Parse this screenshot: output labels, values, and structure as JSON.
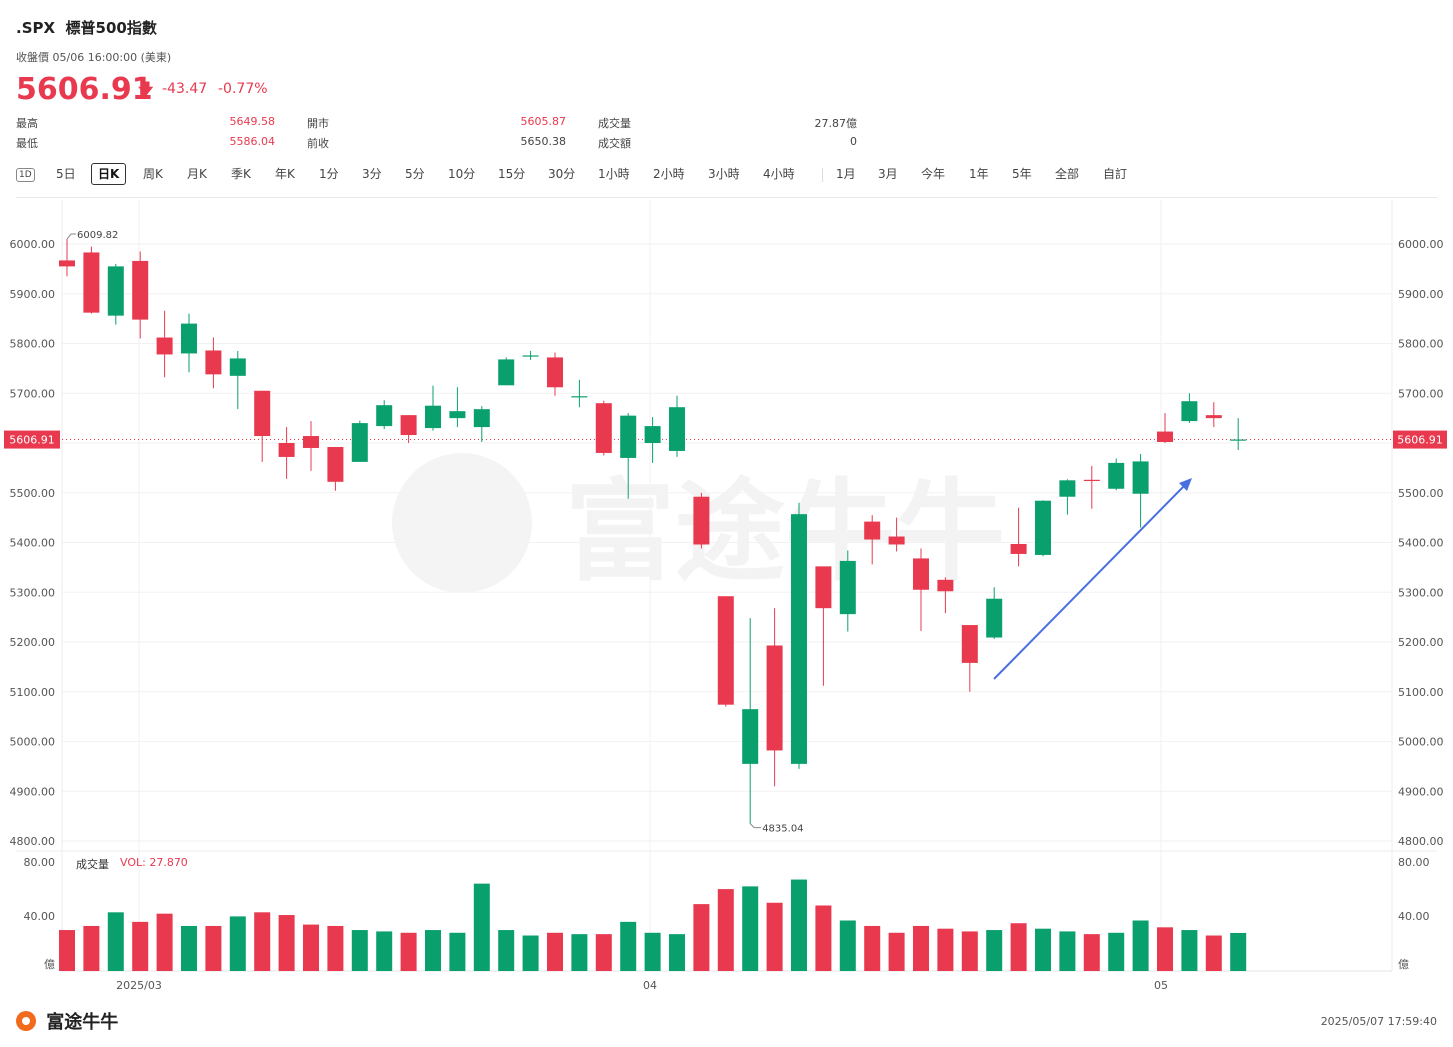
{
  "header": {
    "symbol": ".SPX",
    "name": "標普500指數",
    "subtitle": "收盤價 05/06 16:00:00 (美東)",
    "price": "5606.91",
    "change": "-43.47",
    "change_pct": "-0.77%"
  },
  "stats": [
    {
      "label": "最高",
      "value": "5649.58"
    },
    {
      "label": "最低",
      "value": "5586.04"
    },
    {
      "label": "開市",
      "value": "5605.87"
    },
    {
      "label": "前收",
      "value": "5650.38"
    },
    {
      "label": "成交量",
      "value": "27.87億"
    },
    {
      "label": "成交額",
      "value": "0"
    }
  ],
  "tabs": [
    "1D",
    "5日",
    "日K",
    "周K",
    "月K",
    "季K",
    "年K",
    "1分",
    "3分",
    "5分",
    "10分",
    "15分",
    "30分",
    "1小時",
    "2小時",
    "3小時",
    "4小時",
    "1月",
    "3月",
    "今年",
    "1年",
    "5年",
    "全部",
    "自訂"
  ],
  "active_tab": "日K",
  "volume_label": "成交量",
  "volume_value": "VOL: 27.870",
  "footer": {
    "logo": "富途牛牛",
    "timestamp": "2025/05/07 17:59:40"
  },
  "colors": {
    "up": "#0aa06e",
    "down": "#e8394f",
    "arrow": "#4a6fe0"
  },
  "chart_data": {
    "type": "candlestick",
    "y_axis": {
      "min": 4800,
      "max": 6000,
      "ticks": [
        "6000.00",
        "5900.00",
        "5800.00",
        "5700.00",
        "5600.00",
        "5500.00",
        "5400.00",
        "5300.00",
        "5200.00",
        "5100.00",
        "5000.00",
        "4900.00",
        "4800.00"
      ]
    },
    "current_price_label": "5606.91",
    "x_labels": [
      "2025/03",
      "04",
      "05"
    ],
    "annotations": {
      "high": "6009.82",
      "low": "4835.04"
    },
    "volume_axis": {
      "ticks": [
        "80.00",
        "40.00"
      ],
      "unit": "億"
    },
    "candles": [
      {
        "o": 5967,
        "c": 5955,
        "h": 6010,
        "l": 5935,
        "v": 30
      },
      {
        "o": 5983,
        "c": 5862,
        "h": 5995,
        "l": 5860,
        "v": 33
      },
      {
        "o": 5856,
        "c": 5955,
        "h": 5960,
        "l": 5838,
        "v": 43
      },
      {
        "o": 5966,
        "c": 5848,
        "h": 5985,
        "l": 5810,
        "v": 36
      },
      {
        "o": 5812,
        "c": 5778,
        "h": 5866,
        "l": 5732,
        "v": 42
      },
      {
        "o": 5780,
        "c": 5840,
        "h": 5860,
        "l": 5742,
        "v": 33
      },
      {
        "o": 5786,
        "c": 5738,
        "h": 5812,
        "l": 5710,
        "v": 33
      },
      {
        "o": 5735,
        "c": 5770,
        "h": 5785,
        "l": 5668,
        "v": 40
      },
      {
        "o": 5705,
        "c": 5614,
        "h": 5705,
        "l": 5562,
        "v": 43
      },
      {
        "o": 5600,
        "c": 5572,
        "h": 5632,
        "l": 5528,
        "v": 41
      },
      {
        "o": 5614,
        "c": 5590,
        "h": 5644,
        "l": 5544,
        "v": 34
      },
      {
        "o": 5592,
        "c": 5522,
        "h": 5592,
        "l": 5504,
        "v": 33
      },
      {
        "o": 5562,
        "c": 5640,
        "h": 5645,
        "l": 5562,
        "v": 30
      },
      {
        "o": 5634,
        "c": 5676,
        "h": 5686,
        "l": 5628,
        "v": 29
      },
      {
        "o": 5656,
        "c": 5616,
        "h": 5656,
        "l": 5600,
        "v": 28
      },
      {
        "o": 5630,
        "c": 5675,
        "h": 5715,
        "l": 5625,
        "v": 30
      },
      {
        "o": 5650,
        "c": 5664,
        "h": 5712,
        "l": 5632,
        "v": 28
      },
      {
        "o": 5632,
        "c": 5668,
        "h": 5674,
        "l": 5602,
        "v": 64
      },
      {
        "o": 5716,
        "c": 5768,
        "h": 5772,
        "l": 5716,
        "v": 30
      },
      {
        "o": 5775,
        "c": 5776,
        "h": 5785,
        "l": 5767,
        "v": 26
      },
      {
        "o": 5772,
        "c": 5712,
        "h": 5782,
        "l": 5695,
        "v": 28
      },
      {
        "o": 5694,
        "c": 5694,
        "h": 5727,
        "l": 5672,
        "v": 27
      },
      {
        "o": 5680,
        "c": 5580,
        "h": 5685,
        "l": 5575,
        "v": 27
      },
      {
        "o": 5570,
        "c": 5655,
        "h": 5660,
        "l": 5488,
        "v": 36
      },
      {
        "o": 5600,
        "c": 5634,
        "h": 5652,
        "l": 5560,
        "v": 28
      },
      {
        "o": 5584,
        "c": 5672,
        "h": 5695,
        "l": 5572,
        "v": 27
      },
      {
        "o": 5492,
        "c": 5396,
        "h": 5500,
        "l": 5388,
        "v": 49
      },
      {
        "o": 5292,
        "c": 5074,
        "h": 5292,
        "l": 5070,
        "v": 60
      },
      {
        "o": 4955,
        "c": 5065,
        "h": 5248,
        "l": 4835,
        "v": 62
      },
      {
        "o": 5193,
        "c": 4982,
        "h": 5268,
        "l": 4910,
        "v": 50
      },
      {
        "o": 4955,
        "c": 5457,
        "h": 5480,
        "l": 4945,
        "v": 67
      },
      {
        "o": 5352,
        "c": 5268,
        "h": 5352,
        "l": 5112,
        "v": 48
      },
      {
        "o": 5256,
        "c": 5363,
        "h": 5384,
        "l": 5221,
        "v": 37
      },
      {
        "o": 5442,
        "c": 5406,
        "h": 5455,
        "l": 5356,
        "v": 33
      },
      {
        "o": 5412,
        "c": 5396,
        "h": 5450,
        "l": 5382,
        "v": 28
      },
      {
        "o": 5368,
        "c": 5305,
        "h": 5388,
        "l": 5222,
        "v": 33
      },
      {
        "o": 5325,
        "c": 5302,
        "h": 5330,
        "l": 5258,
        "v": 31
      },
      {
        "o": 5234,
        "c": 5158,
        "h": 5234,
        "l": 5100,
        "v": 29
      },
      {
        "o": 5209,
        "c": 5287,
        "h": 5310,
        "l": 5206,
        "v": 30
      },
      {
        "o": 5397,
        "c": 5377,
        "h": 5470,
        "l": 5352,
        "v": 35
      },
      {
        "o": 5375,
        "c": 5484,
        "h": 5485,
        "l": 5372,
        "v": 31
      },
      {
        "o": 5492,
        "c": 5525,
        "h": 5527,
        "l": 5456,
        "v": 29
      },
      {
        "o": 5526,
        "c": 5525,
        "h": 5554,
        "l": 5468,
        "v": 27
      },
      {
        "o": 5508,
        "c": 5560,
        "h": 5569,
        "l": 5505,
        "v": 28
      },
      {
        "o": 5498,
        "c": 5563,
        "h": 5578,
        "l": 5430,
        "v": 37
      },
      {
        "o": 5623,
        "c": 5602,
        "h": 5660,
        "l": 5600,
        "v": 32
      },
      {
        "o": 5644,
        "c": 5684,
        "h": 5700,
        "l": 5640,
        "v": 30
      },
      {
        "o": 5656,
        "c": 5650,
        "h": 5682,
        "l": 5632,
        "v": 26
      },
      {
        "o": 5606,
        "c": 5607,
        "h": 5650,
        "l": 5586,
        "v": 27.87
      }
    ]
  }
}
